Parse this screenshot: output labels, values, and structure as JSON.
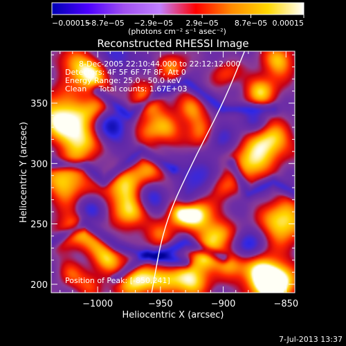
{
  "chart_data": {
    "type": "heatmap",
    "title": "Reconstructed RHESSI Image",
    "xlabel": "Heliocentric X (arcsec)",
    "ylabel": "Heliocentric Y (arcsec)",
    "xlim": [
      -1037,
      -843
    ],
    "ylim": [
      193,
      393
    ],
    "x_ticks": [
      -1000,
      -950,
      -900,
      -850
    ],
    "x_tick_labels": [
      "−1000",
      "−950",
      "−900",
      "−850"
    ],
    "y_ticks": [
      200,
      250,
      300,
      350
    ],
    "y_tick_labels": [
      "200",
      "250",
      "300",
      "350"
    ],
    "annotations": [
      "8-Dec-2005 22:10:44.000 to 22:12:12.000",
      "Detectors: 4F 5F 6F 7F 8F, Att 0",
      "Energy Range: 25.0 - 50.0 keV",
      "Clean     Total counts: 1.67E+03"
    ],
    "peak_label": "Position of Peak: [-850,241]",
    "peak": [
      -850,
      241
    ],
    "colorbar": {
      "range": [
        -0.00015,
        0.00015
      ],
      "ticks": [
        -0.00015,
        -8.7e-05,
        -2.9e-05,
        2.9e-05,
        8.7e-05,
        0.00015
      ],
      "tick_labels": [
        "−0.00015",
        "−8.7e−05",
        "−2.9e−05",
        "2.9e−05",
        "8.7e−05",
        "0.00015"
      ],
      "unit_label": "(photons cm⁻² s⁻¹ asec⁻²)",
      "stops": [
        "#0000b4",
        "#4c00ff",
        "#a050f0",
        "#c080ff",
        "#ff0000",
        "#ff8c00",
        "#ffd800",
        "#ffffff"
      ]
    },
    "limb": [
      [
        -957,
        193
      ],
      [
        -947,
        250
      ],
      [
        -925,
        300
      ],
      [
        -900,
        350
      ],
      [
        -883,
        393
      ]
    ],
    "grid": false,
    "colors": {
      "background": "#000000",
      "background_field": "#6e2ea6"
    },
    "blobs": [
      [
        -1030,
        340,
        14,
        1.0
      ],
      [
        -1005,
        372,
        11,
        0.9
      ],
      [
        -1012,
        320,
        12,
        0.9
      ],
      [
        -1025,
        285,
        13,
        0.9
      ],
      [
        -1020,
        245,
        11,
        0.75
      ],
      [
        -1000,
        232,
        9,
        0.6
      ],
      [
        -980,
        278,
        12,
        0.85
      ],
      [
        -972,
        258,
        10,
        0.75
      ],
      [
        -960,
        292,
        10,
        0.7
      ],
      [
        -990,
        220,
        8,
        0.6
      ],
      [
        -1005,
        198,
        8,
        0.55
      ],
      [
        -970,
        203,
        11,
        0.95
      ],
      [
        -945,
        205,
        10,
        0.7
      ],
      [
        -925,
        205,
        12,
        0.85
      ],
      [
        -915,
        222,
        8,
        0.6
      ],
      [
        -935,
        260,
        9,
        0.75
      ],
      [
        -920,
        258,
        10,
        0.85
      ],
      [
        -905,
        240,
        10,
        0.8
      ],
      [
        -895,
        218,
        8,
        0.6
      ],
      [
        -870,
        208,
        13,
        0.9
      ],
      [
        -857,
        200,
        12,
        1.0
      ],
      [
        -852,
        252,
        13,
        1.0
      ],
      [
        -880,
        300,
        11,
        0.85
      ],
      [
        -862,
        318,
        12,
        0.95
      ],
      [
        -900,
        282,
        8,
        0.6
      ],
      [
        -915,
        322,
        10,
        0.8
      ],
      [
        -925,
        345,
        9,
        0.65
      ],
      [
        -870,
        360,
        10,
        0.8
      ],
      [
        -855,
        385,
        10,
        0.8
      ],
      [
        -945,
        330,
        9,
        0.65
      ],
      [
        -960,
        325,
        8,
        0.55
      ],
      [
        -962,
        352,
        10,
        0.75
      ],
      [
        -940,
        380,
        9,
        0.6
      ],
      [
        -1020,
        385,
        9,
        0.6
      ],
      [
        -898,
        375,
        8,
        0.5
      ],
      [
        -1000,
        345,
        8,
        0.6
      ],
      [
        -1022,
        210,
        8,
        0.5
      ],
      [
        -950,
        240,
        9,
        0.5
      ]
    ],
    "dark_blobs": [
      [
        -990,
        330,
        10,
        -0.9
      ],
      [
        -958,
        272,
        9,
        -0.8
      ],
      [
        -905,
        320,
        9,
        -0.75
      ],
      [
        -880,
        232,
        8,
        -0.75
      ],
      [
        -920,
        290,
        10,
        -0.6
      ],
      [
        -1005,
        262,
        8,
        -0.6
      ],
      [
        -940,
        220,
        8,
        -0.5
      ],
      [
        -985,
        390,
        9,
        -0.6
      ],
      [
        -875,
        335,
        7,
        -0.5
      ],
      [
        -930,
        270,
        6,
        -0.5
      ]
    ],
    "dark_lines": [
      [
        [
          -1037,
          235
        ],
        [
          -1010,
          250
        ],
        [
          -985,
          232
        ],
        [
          -955,
          222
        ],
        [
          -930,
          235
        ],
        [
          -900,
          222
        ]
      ],
      [
        [
          -1037,
          300
        ],
        [
          -1010,
          298
        ],
        [
          -995,
          285
        ],
        [
          -965,
          310
        ],
        [
          -940,
          295
        ]
      ],
      [
        [
          -1000,
          360
        ],
        [
          -975,
          340
        ],
        [
          -950,
          360
        ],
        [
          -930,
          368
        ],
        [
          -900,
          345
        ],
        [
          -860,
          345
        ]
      ],
      [
        [
          -985,
          205
        ],
        [
          -960,
          225
        ],
        [
          -930,
          218
        ]
      ],
      [
        [
          -893,
          300
        ],
        [
          -880,
          275
        ],
        [
          -860,
          285
        ],
        [
          -843,
          275
        ]
      ]
    ]
  },
  "footer": {
    "timestamp": "7-Jul-2013 13:37"
  }
}
